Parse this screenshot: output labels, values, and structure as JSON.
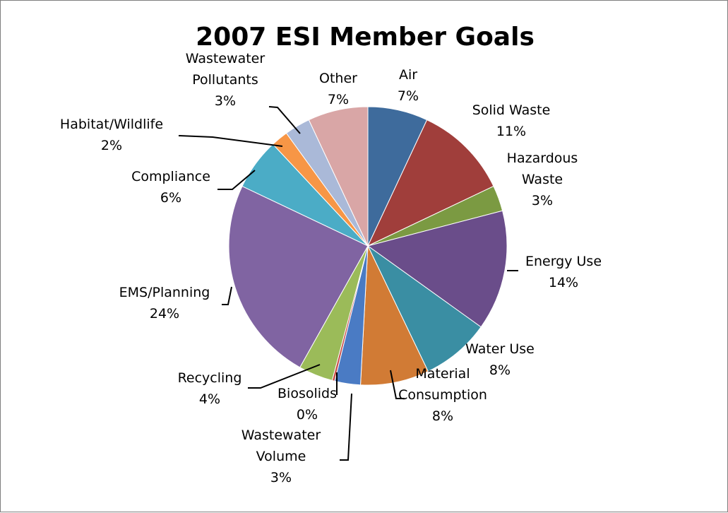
{
  "chart_data": {
    "type": "pie",
    "title": "2007 ESI Member Goals",
    "slices": [
      {
        "label": "Air",
        "value": 7,
        "value_label": "7%",
        "color": "#3e6b9c"
      },
      {
        "label": "Solid Waste",
        "value": 11,
        "value_label": "11%",
        "color": "#a03e3b"
      },
      {
        "label": "Hazardous Waste",
        "label_lines": [
          "Hazardous",
          "Waste"
        ],
        "value": 3,
        "value_label": "3%",
        "color": "#7b9a42"
      },
      {
        "label": "Energy Use",
        "value": 14,
        "value_label": "14%",
        "color": "#6a4d8a"
      },
      {
        "label": "Water Use",
        "value": 8,
        "value_label": "8%",
        "color": "#3a8ea3"
      },
      {
        "label": "Material Consumption",
        "label_lines": [
          "Material",
          "Consumption"
        ],
        "value": 8,
        "value_label": "8%",
        "color": "#d17b35"
      },
      {
        "label": "Wastewater Volume",
        "label_lines": [
          "Wastewater",
          "Volume"
        ],
        "value": 3,
        "value_label": "3%",
        "color": "#4a7bc4"
      },
      {
        "label": "Biosolids",
        "value": 0.3,
        "value_label": "0%",
        "color": "#c9504b"
      },
      {
        "label": "Recycling",
        "value": 4,
        "value_label": "4%",
        "color": "#9bbb59"
      },
      {
        "label": "EMS/Planning",
        "value": 24,
        "value_label": "24%",
        "color": "#8064a2"
      },
      {
        "label": "Compliance",
        "value": 6,
        "value_label": "6%",
        "color": "#4bacc6"
      },
      {
        "label": "Habitat/Wildlife",
        "value": 2,
        "value_label": "2%",
        "color": "#f79646"
      },
      {
        "label": "Wastewater Pollutants",
        "label_lines": [
          "Wastewater",
          "Pollutants"
        ],
        "value": 3,
        "value_label": "3%",
        "color": "#aab9d8"
      },
      {
        "label": "Other",
        "value": 7,
        "value_label": "7%",
        "color": "#d9a6a6"
      }
    ]
  }
}
